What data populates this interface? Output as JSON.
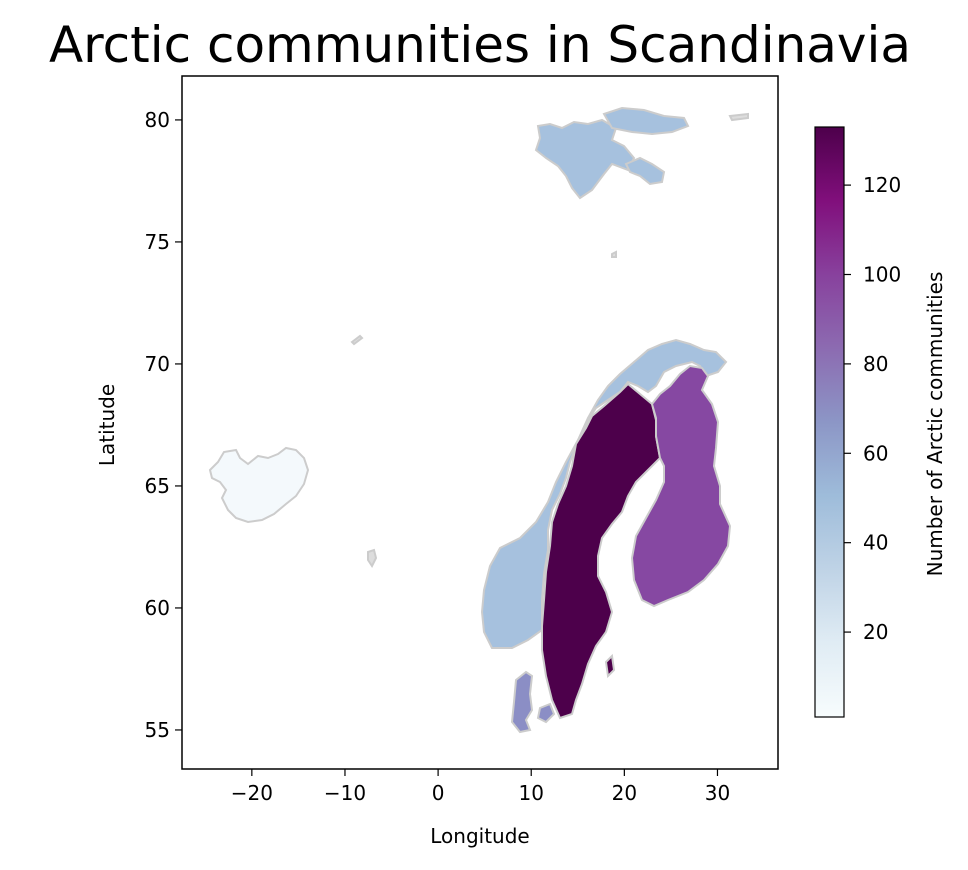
{
  "chart_data": {
    "type": "choropleth",
    "title": "Arctic communities in Scandinavia",
    "xlabel": "Longitude",
    "ylabel": "Latitude",
    "xlim": [
      -27.5,
      36.5
    ],
    "ylim": [
      53.4,
      81.8
    ],
    "xticks": [
      -20,
      -10,
      0,
      10,
      20,
      30
    ],
    "xtick_labels": [
      "−20",
      "−10",
      "0",
      "10",
      "20",
      "30"
    ],
    "yticks": [
      55,
      60,
      65,
      70,
      75,
      80
    ],
    "colorbar": {
      "label": "Number of Arctic communities",
      "min": 1,
      "max": 133,
      "ticks": [
        20,
        40,
        60,
        80,
        100,
        120
      ],
      "colormap": "BuPu",
      "stops": [
        "#f7fcfd",
        "#e0ecf4",
        "#bfd3e6",
        "#9ebcda",
        "#8c96c6",
        "#8c6bb1",
        "#88419d",
        "#810f7c",
        "#4d004b"
      ]
    },
    "regions": [
      {
        "name": "Sweden",
        "value": 133
      },
      {
        "name": "Finland",
        "value": 97
      },
      {
        "name": "Denmark",
        "value": 69
      },
      {
        "name": "Norway",
        "value": 45
      },
      {
        "name": "Svalbard",
        "value": 45
      },
      {
        "name": "Iceland",
        "value": 1
      }
    ]
  }
}
